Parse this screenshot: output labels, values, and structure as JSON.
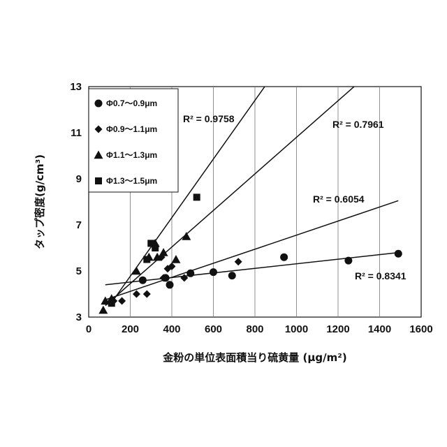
{
  "chart_data": {
    "type": "scatter",
    "xlabel": "金粉の単位表面積当り硫黄量 (μg/m²)",
    "ylabel": "タップ密度(g/cm³)",
    "xlim": [
      0,
      1600
    ],
    "ylim": [
      3,
      13
    ],
    "x_ticks": [
      "0",
      "200",
      "400",
      "600",
      "800",
      "1000",
      "1200",
      "1400",
      "1600"
    ],
    "y_ticks": [
      "3",
      "5",
      "7",
      "9",
      "11",
      "13"
    ],
    "grid": "vertical",
    "legend_position": "top-left",
    "series": [
      {
        "name": "Φ0.7～0.9μm",
        "marker": "circle",
        "points": [
          [
            260,
            4.6
          ],
          [
            370,
            4.7
          ],
          [
            390,
            4.4
          ],
          [
            490,
            4.9
          ],
          [
            600,
            4.95
          ],
          [
            690,
            4.8
          ],
          [
            940,
            5.6
          ],
          [
            1250,
            5.45
          ],
          [
            1490,
            5.75
          ]
        ],
        "trendline": [
          [
            80,
            4.4
          ],
          [
            1490,
            5.8
          ]
        ],
        "r2_label": "R² = 0.8341"
      },
      {
        "name": "Φ0.9～1.1μm",
        "marker": "diamond",
        "points": [
          [
            120,
            3.7
          ],
          [
            160,
            3.7
          ],
          [
            230,
            4.0
          ],
          [
            280,
            4.0
          ],
          [
            360,
            4.7
          ],
          [
            380,
            5.1
          ],
          [
            460,
            4.7
          ],
          [
            490,
            4.9
          ],
          [
            720,
            5.4
          ],
          [
            400,
            5.2
          ],
          [
            350,
            5.6
          ]
        ],
        "trendline": [
          [
            80,
            3.75
          ],
          [
            1490,
            8.05
          ]
        ],
        "r2_label": "R² = 0.6054"
      },
      {
        "name": "Φ1.1～1.3μm",
        "marker": "triangle",
        "points": [
          [
            70,
            3.3
          ],
          [
            80,
            3.7
          ],
          [
            110,
            3.8
          ],
          [
            230,
            5.0
          ],
          [
            290,
            5.6
          ],
          [
            320,
            6.2
          ],
          [
            330,
            5.6
          ],
          [
            360,
            5.8
          ],
          [
            420,
            5.5
          ],
          [
            470,
            6.5
          ]
        ],
        "trendline": [
          [
            80,
            3.5
          ],
          [
            1290,
            13.1
          ]
        ],
        "r2_label": "R² = 0.7961"
      },
      {
        "name": "Φ1.3～1.5μm",
        "marker": "square",
        "points": [
          [
            110,
            3.6
          ],
          [
            280,
            5.5
          ],
          [
            300,
            6.2
          ],
          [
            320,
            6.0
          ],
          [
            520,
            8.2
          ]
        ],
        "trendline": [
          [
            100,
            3.5
          ],
          [
            855,
            13.1
          ]
        ],
        "r2_label": "R² = 0.9758"
      }
    ]
  }
}
